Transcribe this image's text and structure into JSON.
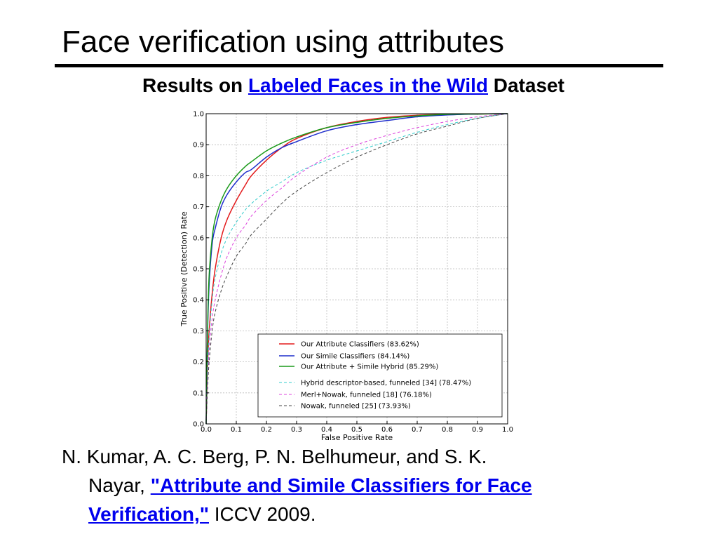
{
  "slide": {
    "title": "Face verification using attributes",
    "subtitle_prefix": "Results on",
    "subtitle_link": "Labeled Faces in the Wild",
    "subtitle_suffix": "Dataset"
  },
  "citation": {
    "authors_line1": "N. Kumar, A. C. Berg, P. N. Belhumeur, and S. K.",
    "authors_line2": "Nayar,",
    "paper_title_part1": "\"Attribute and Simile Classifiers for Face",
    "paper_title_part2": "Verification,\"",
    "venue": "ICCV 2009."
  },
  "chart_data": {
    "type": "line",
    "title": "",
    "xlabel": "False Positive Rate",
    "ylabel": "True Positive (Detection) Rate",
    "xlim": [
      0.0,
      1.0
    ],
    "ylim": [
      0.0,
      1.0
    ],
    "xticks": [
      "0.0",
      "0.1",
      "0.2",
      "0.3",
      "0.4",
      "0.5",
      "0.6",
      "0.7",
      "0.8",
      "0.9",
      "1.0"
    ],
    "yticks": [
      "0.0",
      "0.1",
      "0.2",
      "0.3",
      "0.4",
      "0.5",
      "0.6",
      "0.7",
      "0.8",
      "0.9",
      "1.0"
    ],
    "grid": true,
    "legend_position": "lower-right",
    "series": [
      {
        "name": "Our Attribute Classifiers (83.62%)",
        "color": "#e31a1c",
        "dash": "solid",
        "x": [
          0,
          0.005,
          0.01,
          0.02,
          0.03,
          0.05,
          0.07,
          0.1,
          0.13,
          0.15,
          0.2,
          0.25,
          0.3,
          0.4,
          0.5,
          0.6,
          0.7,
          0.8,
          0.9,
          1.0
        ],
        "y": [
          0,
          0.2,
          0.3,
          0.42,
          0.5,
          0.6,
          0.66,
          0.72,
          0.77,
          0.8,
          0.85,
          0.89,
          0.92,
          0.955,
          0.975,
          0.988,
          0.995,
          0.998,
          0.999,
          1.0
        ]
      },
      {
        "name": "Our Simile Classifiers (84.14%)",
        "color": "#1f2ecc",
        "dash": "solid",
        "x": [
          0,
          0.005,
          0.01,
          0.02,
          0.03,
          0.05,
          0.07,
          0.1,
          0.13,
          0.15,
          0.2,
          0.25,
          0.3,
          0.4,
          0.5,
          0.6,
          0.7,
          0.8,
          0.9,
          1.0
        ],
        "y": [
          0,
          0.3,
          0.45,
          0.58,
          0.63,
          0.7,
          0.74,
          0.78,
          0.81,
          0.82,
          0.86,
          0.89,
          0.91,
          0.945,
          0.965,
          0.978,
          0.99,
          0.996,
          0.999,
          1.0
        ]
      },
      {
        "name": "Our Attribute + Simile Hybrid (85.29%)",
        "color": "#1a9a1a",
        "dash": "solid",
        "x": [
          0,
          0.005,
          0.01,
          0.02,
          0.03,
          0.05,
          0.07,
          0.1,
          0.13,
          0.15,
          0.2,
          0.25,
          0.3,
          0.4,
          0.5,
          0.6,
          0.7,
          0.8,
          0.9,
          1.0
        ],
        "y": [
          0,
          0.32,
          0.48,
          0.6,
          0.66,
          0.72,
          0.76,
          0.8,
          0.83,
          0.845,
          0.88,
          0.905,
          0.925,
          0.955,
          0.972,
          0.985,
          0.993,
          0.998,
          0.999,
          1.0
        ]
      },
      {
        "name": "Hybrid descriptor-based, funneled [34] (78.47%)",
        "color": "#33cccc",
        "dash": "dashed",
        "x": [
          0,
          0.005,
          0.01,
          0.02,
          0.03,
          0.05,
          0.07,
          0.1,
          0.13,
          0.15,
          0.2,
          0.25,
          0.3,
          0.4,
          0.5,
          0.6,
          0.7,
          0.8,
          0.9,
          1.0
        ],
        "y": [
          0,
          0.18,
          0.28,
          0.4,
          0.47,
          0.55,
          0.6,
          0.65,
          0.69,
          0.71,
          0.75,
          0.78,
          0.81,
          0.85,
          0.88,
          0.91,
          0.94,
          0.965,
          0.985,
          1.0
        ]
      },
      {
        "name": "Merl+Nowak, funneled [18] (76.18%)",
        "color": "#dd44dd",
        "dash": "dashed",
        "x": [
          0,
          0.005,
          0.01,
          0.02,
          0.03,
          0.05,
          0.07,
          0.1,
          0.13,
          0.15,
          0.2,
          0.25,
          0.3,
          0.4,
          0.5,
          0.6,
          0.7,
          0.8,
          0.9,
          1.0
        ],
        "y": [
          0,
          0.15,
          0.24,
          0.34,
          0.4,
          0.48,
          0.54,
          0.6,
          0.64,
          0.67,
          0.72,
          0.76,
          0.8,
          0.86,
          0.9,
          0.93,
          0.955,
          0.975,
          0.99,
          1.0
        ]
      },
      {
        "name": "Nowak, funneled [25] (73.93%)",
        "color": "#444444",
        "dash": "dashed",
        "x": [
          0,
          0.005,
          0.01,
          0.02,
          0.03,
          0.05,
          0.07,
          0.1,
          0.13,
          0.15,
          0.2,
          0.25,
          0.3,
          0.4,
          0.5,
          0.6,
          0.7,
          0.8,
          0.9,
          1.0
        ],
        "y": [
          0,
          0.12,
          0.2,
          0.3,
          0.36,
          0.43,
          0.48,
          0.54,
          0.58,
          0.61,
          0.66,
          0.71,
          0.75,
          0.81,
          0.86,
          0.9,
          0.935,
          0.96,
          0.985,
          1.0
        ]
      }
    ]
  }
}
